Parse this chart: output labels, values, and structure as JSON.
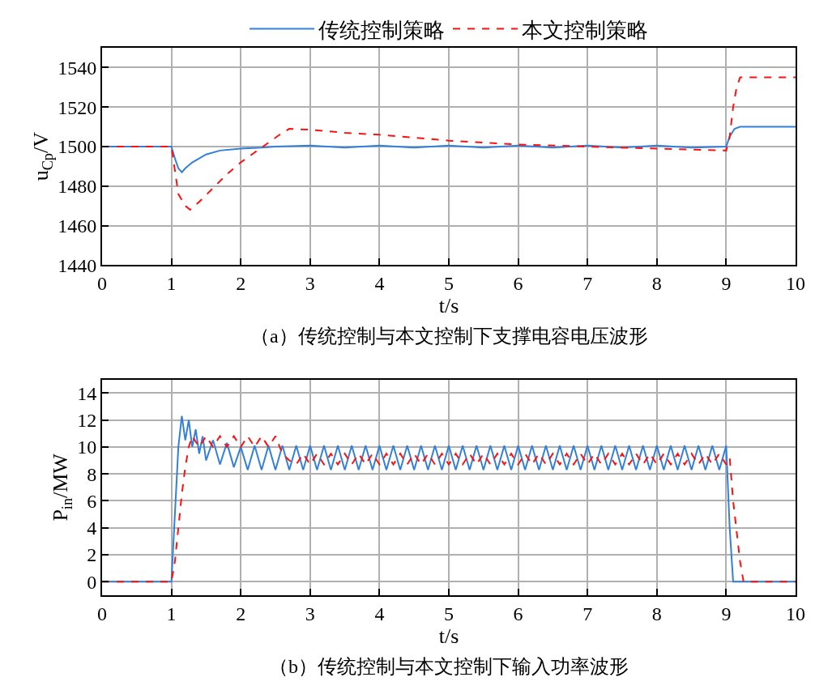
{
  "chart_data": [
    {
      "type": "line",
      "title": "（a）传统控制与本文控制下支撑电容电压波形",
      "xlabel": "t/s",
      "ylabel": "u$_{Cp}$/V",
      "xlim": [
        0,
        10
      ],
      "xticks": [
        0,
        1,
        2,
        3,
        4,
        5,
        6,
        7,
        8,
        9,
        10
      ],
      "ylim": [
        1440,
        1550
      ],
      "yticks": [
        1440,
        1460,
        1480,
        1500,
        1520,
        1540
      ],
      "grid": true,
      "legend": "top",
      "series": [
        {
          "name": "传统控制策略",
          "color": "#3380dc",
          "line_style": "solid",
          "x": [
            0,
            1,
            1.05,
            1.1,
            1.15,
            1.2,
            1.3,
            1.4,
            1.5,
            1.7,
            2.0,
            2.3,
            2.5,
            3,
            3.5,
            4,
            4.5,
            5,
            5.5,
            6,
            6.5,
            7,
            7.5,
            8,
            8.5,
            9,
            9.05,
            9.12,
            9.2,
            10
          ],
          "values": [
            1500,
            1500,
            1494,
            1489,
            1487,
            1489,
            1492,
            1494,
            1496,
            1498,
            1499,
            1499.5,
            1500,
            1500.5,
            1499.5,
            1500.5,
            1499.5,
            1500.5,
            1499.5,
            1500.5,
            1499.5,
            1500.5,
            1499.5,
            1500.5,
            1499.5,
            1500,
            1505,
            1509,
            1510,
            1510
          ]
        },
        {
          "name": "本文控制策略",
          "color": "#ff1010",
          "line_style": "dashed",
          "x": [
            0,
            1,
            1.05,
            1.1,
            1.2,
            1.27,
            1.4,
            1.6,
            1.8,
            2.0,
            2.2,
            2.4,
            2.6,
            2.7,
            3,
            3.5,
            4,
            5,
            6,
            7,
            8,
            9,
            9.05,
            9.1,
            9.15,
            9.2,
            10
          ],
          "values": [
            1500,
            1500,
            1488,
            1476,
            1470,
            1468,
            1472,
            1479,
            1486,
            1492,
            1497,
            1502,
            1507,
            1509,
            1508.5,
            1507,
            1506,
            1503,
            1501,
            1500,
            1499,
            1498,
            1505,
            1520,
            1530,
            1535,
            1535
          ]
        }
      ]
    },
    {
      "type": "line",
      "title": "（b）传统控制与本文控制下输入功率波形",
      "xlabel": "t/s",
      "ylabel": "P$_{in}$/MW",
      "xlim": [
        0,
        10
      ],
      "xticks": [
        0,
        1,
        2,
        3,
        4,
        5,
        6,
        7,
        8,
        9,
        10
      ],
      "ylim": [
        -1,
        15
      ],
      "yticks": [
        0,
        2,
        4,
        6,
        8,
        10,
        12,
        14
      ],
      "grid": true,
      "series": [
        {
          "color": "#3380dc",
          "line_style": "solid",
          "x": [
            0,
            1,
            1.05,
            1.1,
            1.15,
            1.2,
            1.25,
            1.3,
            1.35,
            1.4,
            1.45,
            1.5,
            1.6,
            1.7,
            1.8,
            1.9,
            2.0,
            2.1,
            2.2,
            2.3,
            2.4,
            2.5,
            2.6,
            2.7,
            2.8,
            2.9,
            3.0,
            3.1,
            3.2,
            3.3,
            3.4,
            3.5,
            3.6,
            3.7,
            3.8,
            3.9,
            4.0,
            4.1,
            4.2,
            4.3,
            4.4,
            4.5,
            4.6,
            4.7,
            4.8,
            4.9,
            5.0,
            5.1,
            5.2,
            5.3,
            5.4,
            5.5,
            5.6,
            5.7,
            5.8,
            5.9,
            6.0,
            6.1,
            6.2,
            6.3,
            6.4,
            6.5,
            6.6,
            6.7,
            6.8,
            6.9,
            7.0,
            7.1,
            7.2,
            7.3,
            7.4,
            7.5,
            7.6,
            7.7,
            7.8,
            7.9,
            8.0,
            8.1,
            8.2,
            8.3,
            8.4,
            8.5,
            8.6,
            8.7,
            8.8,
            8.9,
            9.0,
            9.05,
            9.1,
            10
          ],
          "values": [
            0,
            0,
            5,
            10,
            12.3,
            10.5,
            12,
            10,
            11.3,
            9.5,
            10.8,
            9,
            10.5,
            8.7,
            10.3,
            8.5,
            10,
            8.3,
            10.1,
            8.3,
            10.1,
            8.3,
            10.1,
            8.3,
            10.1,
            8.3,
            10.1,
            8.3,
            10.1,
            8.3,
            10.1,
            8.3,
            10.1,
            8.3,
            10.1,
            8.3,
            10.1,
            8.3,
            10.1,
            8.3,
            10.1,
            8.3,
            10.1,
            8.3,
            10.1,
            8.3,
            10.1,
            8.3,
            10.1,
            8.3,
            10.1,
            8.3,
            10.1,
            8.3,
            10.1,
            8.3,
            10.1,
            8.3,
            10.1,
            8.3,
            10.1,
            8.3,
            10.1,
            8.3,
            10.1,
            8.3,
            10.1,
            8.3,
            10.1,
            8.3,
            10.1,
            8.3,
            10.1,
            8.3,
            10.1,
            8.3,
            10.1,
            8.3,
            10.1,
            8.3,
            10.1,
            8.3,
            10.1,
            8.3,
            10.1,
            8.3,
            10.1,
            4,
            0,
            0
          ]
        },
        {
          "color": "#ff1010",
          "line_style": "dashed",
          "x": [
            0,
            1,
            1.05,
            1.1,
            1.15,
            1.2,
            1.25,
            1.3,
            1.4,
            1.5,
            1.6,
            1.7,
            1.8,
            1.9,
            2.0,
            2.1,
            2.2,
            2.3,
            2.4,
            2.5,
            2.6,
            2.7,
            2.8,
            2.9,
            3.0,
            3.1,
            3.2,
            3.3,
            3.4,
            3.5,
            3.6,
            3.7,
            3.8,
            3.9,
            4.0,
            4.1,
            4.2,
            4.3,
            4.4,
            4.5,
            4.6,
            4.7,
            4.8,
            4.9,
            5.0,
            5.1,
            5.2,
            5.3,
            5.4,
            5.5,
            5.6,
            5.7,
            5.8,
            5.9,
            6.0,
            6.1,
            6.2,
            6.3,
            6.4,
            6.5,
            6.6,
            6.7,
            6.8,
            6.9,
            7.0,
            7.1,
            7.2,
            7.3,
            7.4,
            7.5,
            7.6,
            7.7,
            7.8,
            7.9,
            8.0,
            8.1,
            8.2,
            8.3,
            8.4,
            8.5,
            8.6,
            8.7,
            8.8,
            8.9,
            9.0,
            9.05,
            9.1,
            9.2,
            9.25,
            10
          ],
          "values": [
            0,
            0,
            1.5,
            4,
            6.5,
            8.5,
            10,
            10.8,
            10.0,
            10.8,
            10.0,
            10.8,
            10.0,
            10.8,
            10.0,
            10.8,
            10.0,
            10.8,
            10.0,
            10.8,
            9.5,
            9.0,
            8.7,
            9.5,
            8.7,
            9.5,
            8.7,
            9.5,
            8.7,
            9.5,
            8.7,
            9.5,
            8.7,
            9.5,
            8.7,
            9.5,
            8.7,
            9.5,
            8.7,
            9.5,
            8.7,
            9.5,
            8.7,
            9.5,
            8.7,
            9.5,
            8.7,
            9.5,
            8.7,
            9.5,
            8.7,
            9.5,
            8.7,
            9.5,
            8.7,
            9.5,
            8.7,
            9.5,
            8.7,
            9.5,
            8.7,
            9.5,
            8.7,
            9.5,
            8.7,
            9.5,
            8.7,
            9.5,
            8.7,
            9.5,
            8.7,
            9.5,
            8.7,
            9.5,
            8.7,
            9.5,
            8.7,
            9.5,
            8.7,
            9.5,
            8.7,
            9.5,
            8.7,
            9.5,
            8.7,
            9.2,
            6,
            1.5,
            0,
            0
          ]
        }
      ]
    }
  ]
}
